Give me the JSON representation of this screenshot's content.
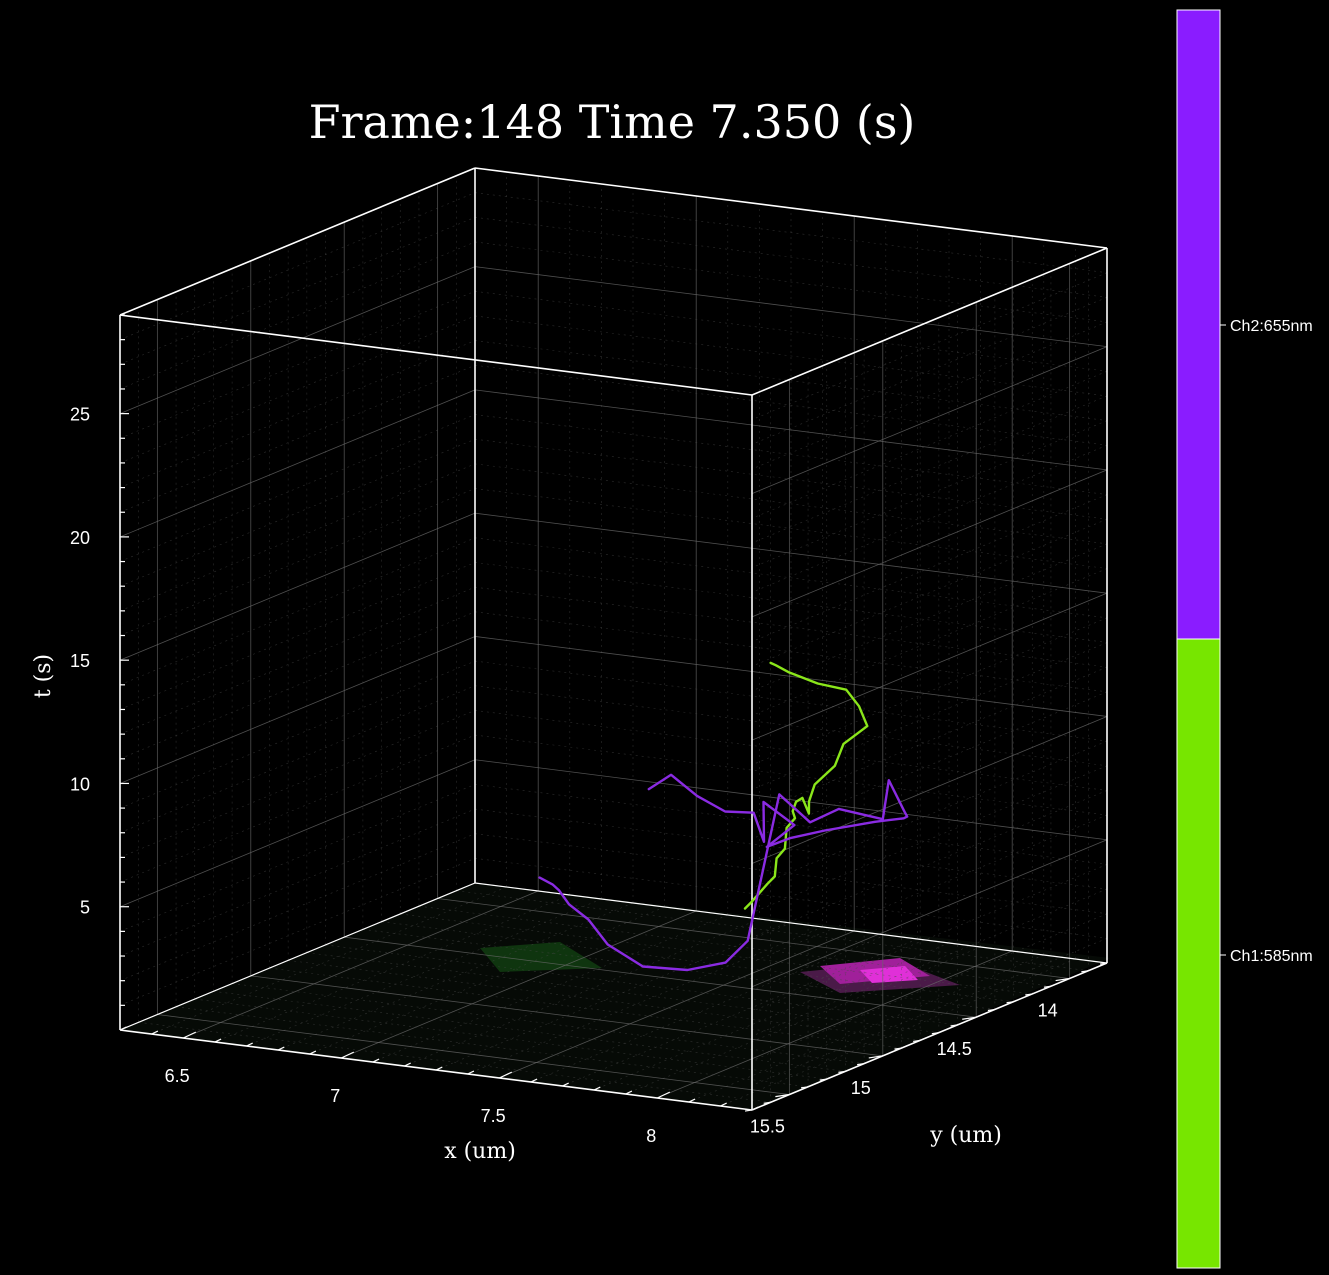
{
  "chart_data": {
    "type": "line",
    "projection": "3d",
    "title": "Frame:148 Time 7.350 (s)",
    "xlabel": "x (um)",
    "ylabel": "y (um)",
    "zlabel": "t (s)",
    "xlim": [
      6.3,
      8.3
    ],
    "ylim": [
      13.8,
      15.7
    ],
    "zlim": [
      0,
      29
    ],
    "xticks": [
      "6.5",
      "7",
      "7.5",
      "8"
    ],
    "yticks": [
      "14",
      "14.5",
      "15",
      "15.5"
    ],
    "zticks": [
      "5",
      "10",
      "15",
      "20",
      "25"
    ],
    "grid": true,
    "background": "#000000",
    "colorbar": {
      "labels": [
        "Ch2:655nm",
        "Ch1:585nm"
      ],
      "colors": [
        "#8a1cff",
        "#77e600"
      ]
    },
    "series": [
      {
        "name": "Ch1:585nm",
        "color": "#8ae61a",
        "points": [
          [
            7.45,
            14.3,
            2.4
          ],
          [
            7.5,
            14.35,
            2.9
          ],
          [
            7.52,
            14.3,
            3.5
          ],
          [
            7.58,
            14.36,
            4.1
          ],
          [
            7.55,
            14.3,
            4.6
          ],
          [
            7.6,
            14.34,
            5.2
          ],
          [
            7.57,
            14.28,
            5.8
          ],
          [
            7.62,
            14.32,
            6.4
          ],
          [
            7.66,
            14.4,
            7.0
          ],
          [
            7.7,
            14.45,
            7.6
          ],
          [
            7.75,
            14.5,
            8.0
          ],
          [
            7.8,
            14.55,
            7.6
          ],
          [
            7.83,
            14.6,
            8.3
          ],
          [
            7.86,
            14.62,
            9.1
          ],
          [
            7.9,
            14.58,
            9.8
          ],
          [
            7.88,
            14.5,
            10.4
          ],
          [
            7.92,
            14.44,
            11.0
          ],
          [
            7.87,
            14.4,
            11.6
          ],
          [
            7.8,
            14.35,
            12.0
          ],
          [
            7.68,
            14.3,
            11.9
          ],
          [
            7.56,
            14.25,
            12.0
          ],
          [
            7.5,
            14.22,
            12.1
          ],
          [
            7.46,
            14.18,
            12.0
          ]
        ]
      },
      {
        "name": "Ch2:655nm",
        "color": "#8a2be2",
        "points": [
          [
            6.85,
            13.8,
            4.7
          ],
          [
            6.95,
            13.85,
            5.6
          ],
          [
            7.05,
            13.88,
            5.0
          ],
          [
            7.18,
            13.95,
            4.8
          ],
          [
            7.3,
            14.0,
            5.1
          ],
          [
            7.38,
            14.08,
            4.3
          ],
          [
            7.42,
            14.15,
            6.2
          ],
          [
            7.5,
            14.12,
            5.3
          ],
          [
            7.46,
            14.2,
            4.6
          ],
          [
            7.58,
            14.28,
            5.4
          ],
          [
            7.75,
            14.38,
            6.3
          ],
          [
            7.95,
            14.45,
            7.2
          ],
          [
            8.1,
            14.55,
            7.9
          ],
          [
            8.2,
            14.7,
            8.6
          ],
          [
            8.28,
            14.85,
            9.4
          ],
          [
            8.26,
            14.9,
            10.8
          ],
          [
            8.3,
            15.0,
            9.6
          ],
          [
            8.22,
            15.1,
            10.2
          ],
          [
            8.2,
            15.22,
            10.0
          ],
          [
            8.15,
            15.3,
            11.3
          ],
          [
            8.05,
            15.3,
            5.2
          ],
          [
            7.95,
            15.25,
            4.0
          ],
          [
            7.8,
            15.2,
            3.3
          ],
          [
            7.6,
            15.1,
            2.8
          ],
          [
            7.4,
            14.95,
            2.9
          ],
          [
            7.25,
            14.8,
            3.2
          ],
          [
            7.1,
            14.65,
            3.1
          ],
          [
            6.98,
            14.5,
            3.0
          ],
          [
            6.9,
            14.4,
            2.8
          ],
          [
            6.8,
            14.3,
            2.6
          ]
        ]
      }
    ]
  }
}
